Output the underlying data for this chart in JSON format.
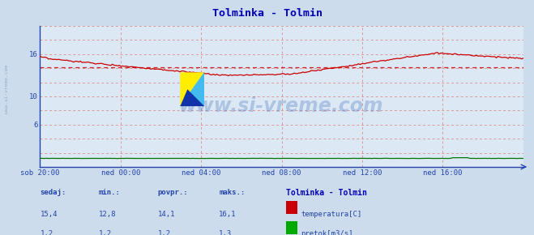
{
  "title": "Tolminka - Tolmin",
  "title_color": "#0000bb",
  "bg_color": "#ccdcec",
  "plot_bg_color": "#dce8f4",
  "x_labels": [
    "sob 20:00",
    "ned 00:00",
    "ned 04:00",
    "ned 08:00",
    "ned 12:00",
    "ned 16:00"
  ],
  "x_ticks_frac": [
    0.0,
    0.1667,
    0.3333,
    0.5,
    0.6667,
    0.8333
  ],
  "total_points": 288,
  "y_min": 0,
  "y_max": 20,
  "y_ticks": [
    6,
    10,
    16
  ],
  "grid_color": "#dd9999",
  "axis_color": "#2244aa",
  "temp_color": "#cc0000",
  "flow_color": "#007700",
  "avg_temp": 14.1,
  "watermark": "www.si-vreme.com",
  "watermark_color": "#3366bb",
  "watermark_alpha": 0.28,
  "legend_title": "Tolminka - Tolmin",
  "legend_title_color": "#0000bb",
  "stats_labels": [
    "sedaj:",
    "min.:",
    "povpr.:",
    "maks.:"
  ],
  "stats_temp": [
    "15,4",
    "12,8",
    "14,1",
    "16,1"
  ],
  "stats_flow": [
    "1,2",
    "1,2",
    "1,2",
    "1,3"
  ],
  "legend_items": [
    "temperatura[C]",
    "pretok[m3/s]"
  ],
  "legend_colors": [
    "#cc0000",
    "#00aa00"
  ]
}
